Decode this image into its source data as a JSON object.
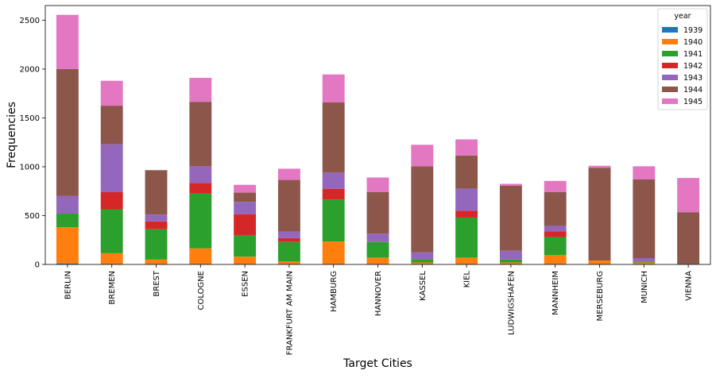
{
  "chart_data": {
    "type": "bar",
    "stacked": true,
    "xlabel": "Target Cities",
    "ylabel": "Frequencies",
    "ylim": [
      0,
      2650
    ],
    "yticks": [
      0,
      500,
      1000,
      1500,
      2000,
      2500
    ],
    "grid": false,
    "legend": {
      "title": "year",
      "placement": "top-right"
    },
    "categories": [
      "BERLIN",
      "BREMEN",
      "BREST",
      "COLOGNE",
      "ESSEN",
      "FRANKFURT AM MAIN",
      "HAMBURG",
      "HANNOVER",
      "KASSEL",
      "KIEL",
      "LUDWIGSHAFEN",
      "MANNHEIM",
      "MERSEBURG",
      "MUNICH",
      "VIENNA"
    ],
    "series": [
      {
        "name": "1939",
        "color": "#1f77b4",
        "values": [
          10,
          0,
          0,
          0,
          0,
          0,
          0,
          0,
          0,
          0,
          0,
          0,
          0,
          0,
          0
        ]
      },
      {
        "name": "1940",
        "color": "#ff7f0e",
        "values": [
          370,
          115,
          50,
          165,
          80,
          30,
          235,
          70,
          20,
          70,
          20,
          95,
          40,
          20,
          0
        ]
      },
      {
        "name": "1941",
        "color": "#2ca02c",
        "values": [
          140,
          450,
          310,
          560,
          215,
          200,
          430,
          160,
          35,
          410,
          30,
          185,
          0,
          10,
          0
        ]
      },
      {
        "name": "1942",
        "color": "#d62728",
        "values": [
          0,
          175,
          80,
          110,
          220,
          40,
          110,
          0,
          0,
          70,
          0,
          60,
          0,
          0,
          0
        ]
      },
      {
        "name": "1943",
        "color": "#9467bd",
        "values": [
          180,
          490,
          70,
          170,
          125,
          65,
          165,
          85,
          70,
          225,
          90,
          55,
          0,
          35,
          5
        ]
      },
      {
        "name": "1944",
        "color": "#8c564b",
        "values": [
          1300,
          395,
          455,
          660,
          95,
          530,
          720,
          425,
          880,
          340,
          665,
          345,
          950,
          805,
          530
        ]
      },
      {
        "name": "1945",
        "color": "#e377c2",
        "values": [
          555,
          255,
          0,
          245,
          80,
          115,
          285,
          150,
          220,
          165,
          20,
          115,
          20,
          135,
          350
        ]
      }
    ]
  }
}
